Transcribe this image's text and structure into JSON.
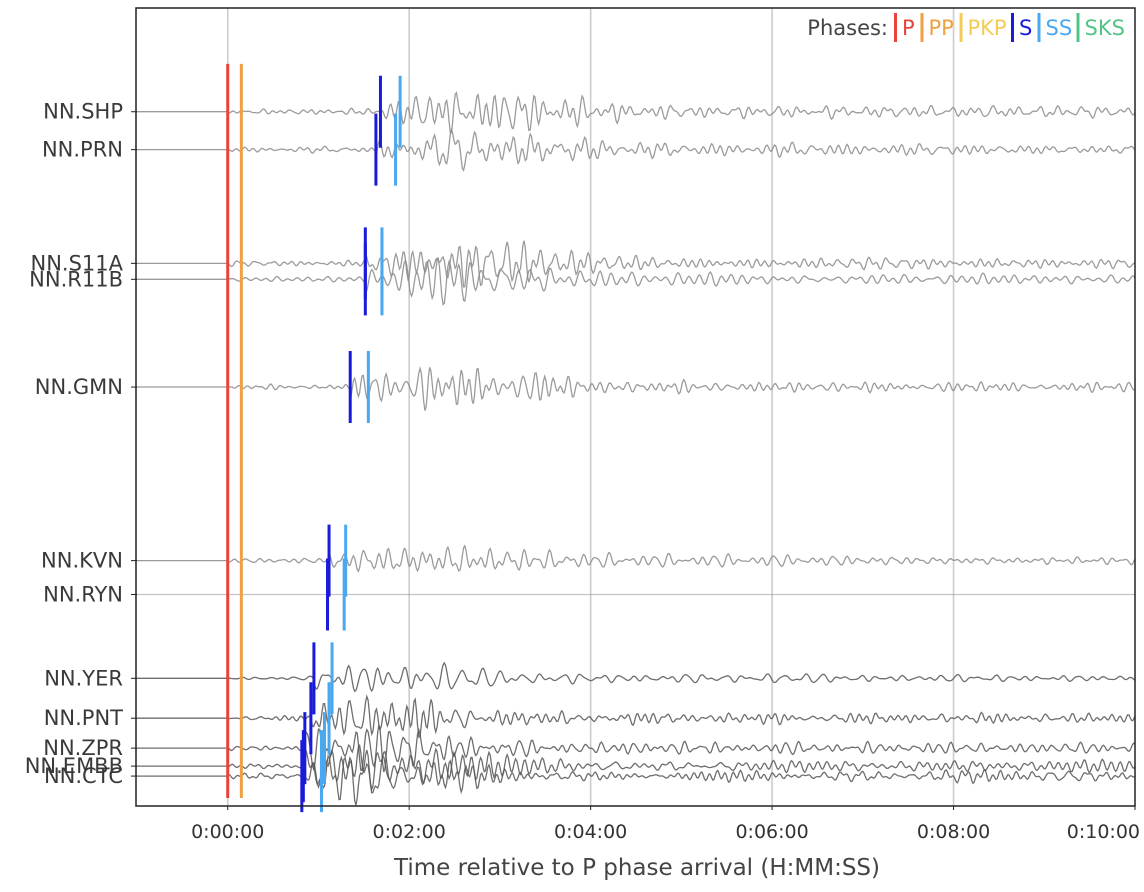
{
  "chart_data": {
    "type": "line",
    "title": "",
    "xlabel": "Time relative to P phase arrival (H:MM:SS)",
    "ylabel": "",
    "x_unit": "seconds",
    "xlim": [
      -60,
      600
    ],
    "x_ticks": [
      {
        "value": 0,
        "label": "0:00:00"
      },
      {
        "value": 120,
        "label": "0:02:00"
      },
      {
        "value": 240,
        "label": "0:04:00"
      },
      {
        "value": 360,
        "label": "0:06:00"
      },
      {
        "value": 480,
        "label": "0:08:00"
      },
      {
        "value": 600,
        "label": "0:10:00"
      }
    ],
    "grid": true,
    "legend": {
      "title": "Phases:",
      "placement": "top-right",
      "entries": [
        {
          "name": "P",
          "color": "#e8423a"
        },
        {
          "name": "PP",
          "color": "#f0a040"
        },
        {
          "name": "PKP",
          "color": "#f2cc55"
        },
        {
          "name": "S",
          "color": "#1a1adb"
        },
        {
          "name": "SS",
          "color": "#4aa8f0"
        },
        {
          "name": "SKS",
          "color": "#52c486"
        }
      ]
    },
    "offset_unit": "degrees",
    "offset_range": [
      102,
      142
    ],
    "stations": [
      {
        "name": "NN.SHP",
        "offset": 107.2,
        "amplitude": 1.0,
        "s_arrival": 101,
        "ss_arrival": 114
      },
      {
        "name": "NN.PRN",
        "offset": 109.1,
        "amplitude": 1.0,
        "s_arrival": 98,
        "ss_arrival": 111
      },
      {
        "name": "NN.S11A",
        "offset": 114.8,
        "amplitude": 1.0,
        "s_arrival": 91,
        "ss_arrival": 102
      },
      {
        "name": "NN.R11B",
        "offset": 115.6,
        "amplitude": 1.0,
        "s_arrival": 91,
        "ss_arrival": 102
      },
      {
        "name": "NN.GMN",
        "offset": 121.0,
        "amplitude": 0.9,
        "s_arrival": 81,
        "ss_arrival": 93
      },
      {
        "name": "NN.KVN",
        "offset": 129.7,
        "amplitude": 0.8,
        "s_arrival": 67,
        "ss_arrival": 78
      },
      {
        "name": "NN.RYN",
        "offset": 131.4,
        "amplitude": 0.0,
        "s_arrival": 66,
        "ss_arrival": 77
      },
      {
        "name": "NN.YER",
        "offset": 135.6,
        "amplitude": 0.8,
        "s_arrival": 57,
        "ss_arrival": 69
      },
      {
        "name": "NN.PNT",
        "offset": 137.6,
        "amplitude": 0.8,
        "s_arrival": 55,
        "ss_arrival": 67
      },
      {
        "name": "NN.ZPR",
        "offset": 139.1,
        "amplitude": 0.8,
        "s_arrival": 51,
        "ss_arrival": 64
      },
      {
        "name": "NN.EMBB",
        "offset": 140.0,
        "amplitude": 0.8,
        "s_arrival": 50,
        "ss_arrival": 62
      },
      {
        "name": "NN.CTC",
        "offset": 140.5,
        "amplitude": 0.8,
        "s_arrival": 49,
        "ss_arrival": 62
      }
    ],
    "phase_lines": [
      {
        "phase": "P",
        "time": 0,
        "offset_range": [
          104.8,
          141.6
        ]
      },
      {
        "phase": "PP",
        "time": 9,
        "offset_range": [
          104.8,
          141.6
        ]
      }
    ]
  }
}
